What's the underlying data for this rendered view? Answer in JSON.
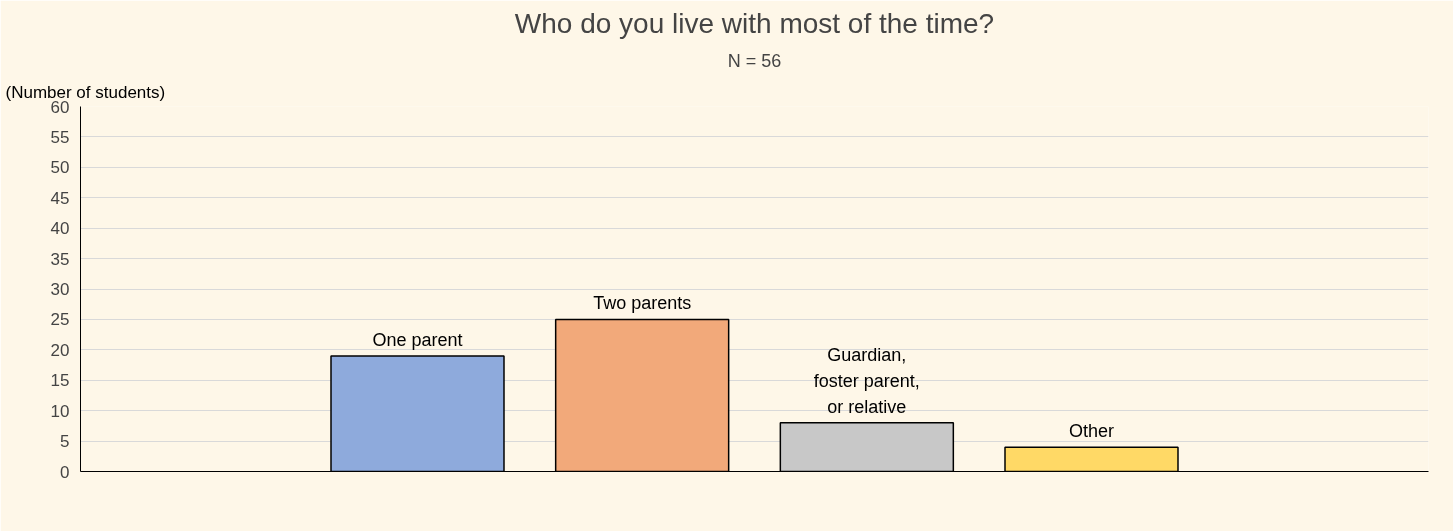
{
  "chart_data": {
    "type": "bar",
    "title": "Who do you live with most of the time?",
    "subtitle": "N = 56",
    "ylabel": "(Number of students)",
    "categories": [
      null,
      "One parent",
      "Two parents",
      "Guardian,\nfoster parent,\nor relative",
      "Other",
      null
    ],
    "values": [
      null,
      19,
      25,
      8,
      4,
      null
    ],
    "colors": [
      "#cccccc",
      "#8eaadc",
      "#f2a97a",
      "#c8c8c8",
      "#ffd966",
      "#cccccc"
    ],
    "ylim": [
      0,
      60
    ],
    "yticks": [
      0,
      5,
      10,
      15,
      20,
      25,
      30,
      35,
      40,
      45,
      50,
      55,
      60
    ],
    "grid": "y"
  }
}
